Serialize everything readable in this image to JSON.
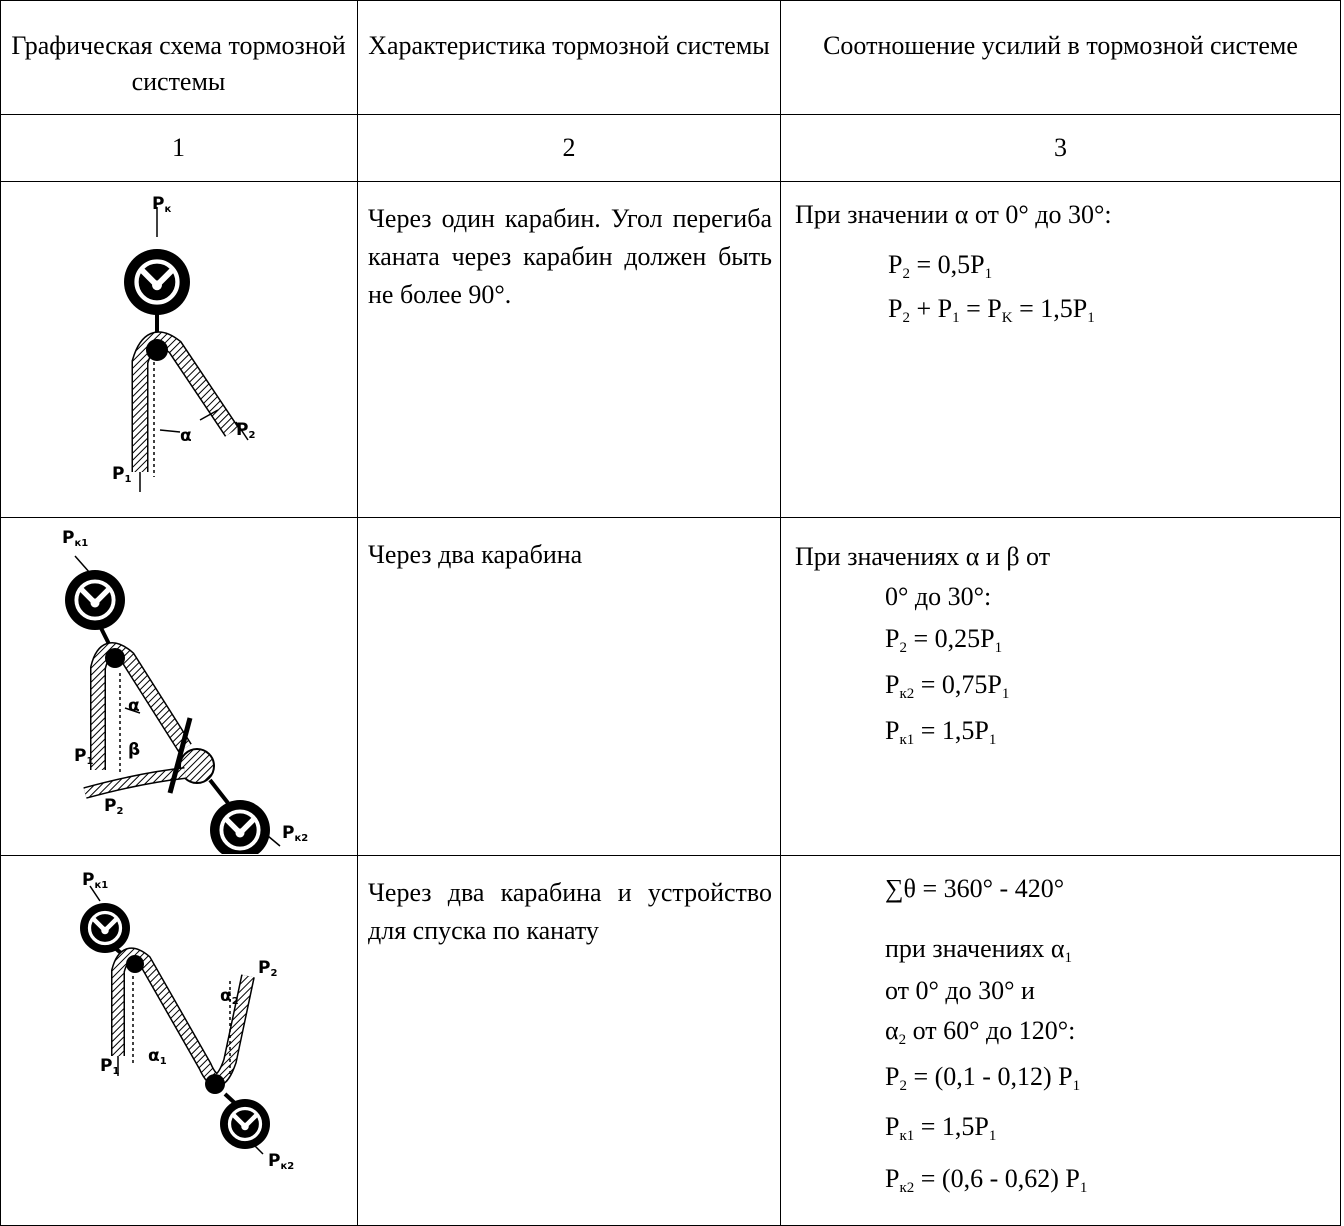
{
  "table": {
    "header": [
      "Графическая схема тормозной системы",
      "Характеристика тормозной системы",
      "Соотношение усилий в тормозной системе"
    ],
    "numbers": [
      "1",
      "2",
      "3"
    ],
    "rows": [
      {
        "diagram_labels": [
          [
            "P",
            "к"
          ],
          [
            "P",
            "1"
          ],
          [
            "P",
            "2"
          ],
          [
            "α"
          ]
        ],
        "description": "Через один карабин. Угол перегиба каната через карабин должен быть не более 90°.",
        "formula_lines": [
          [
            "При значении α от 0° до 30°:"
          ],
          [
            "P",
            "2",
            " = 0,5P",
            "1"
          ],
          [
            "P",
            "2",
            " + P",
            "1",
            " = P",
            "K",
            " = 1,5P",
            "1"
          ]
        ]
      },
      {
        "diagram_labels": [
          [
            "P",
            "к1"
          ],
          [
            "P",
            "1"
          ],
          [
            "α"
          ],
          [
            "β"
          ],
          [
            "P",
            "2"
          ],
          [
            "P",
            "к2"
          ]
        ],
        "description": "Через два карабина",
        "formula_lines": [
          [
            "При значениях α и β от"
          ],
          [
            "0° до 30°:"
          ],
          [
            "P",
            "2",
            " = 0,25P",
            "1"
          ],
          [
            "P",
            "к2",
            " = 0,75P",
            "1"
          ],
          [
            "P",
            "к1",
            " = 1,5P",
            "1"
          ]
        ]
      },
      {
        "diagram_labels": [
          [
            "P",
            "к1"
          ],
          [
            "P",
            "1"
          ],
          [
            "α",
            "1"
          ],
          [
            "α",
            "2"
          ],
          [
            "P",
            "2"
          ],
          [
            "P",
            "к2"
          ]
        ],
        "description": "Через два карабина и устройство для спуска по канату",
        "formula_lines": [
          [
            "∑θ = 360° - 420°"
          ],
          [
            "при значениях α",
            "1"
          ],
          [
            "от 0° до 30° и"
          ],
          [
            "α",
            "2",
            " от 60° до 120°:"
          ],
          [
            "P",
            "2",
            " = (0,1 - 0,12) P",
            "1"
          ],
          [
            "P",
            "к1",
            " = 1,5P",
            "1"
          ],
          [
            "P",
            "к2",
            " = (0,6 - 0,62) P",
            "1"
          ]
        ]
      }
    ]
  }
}
